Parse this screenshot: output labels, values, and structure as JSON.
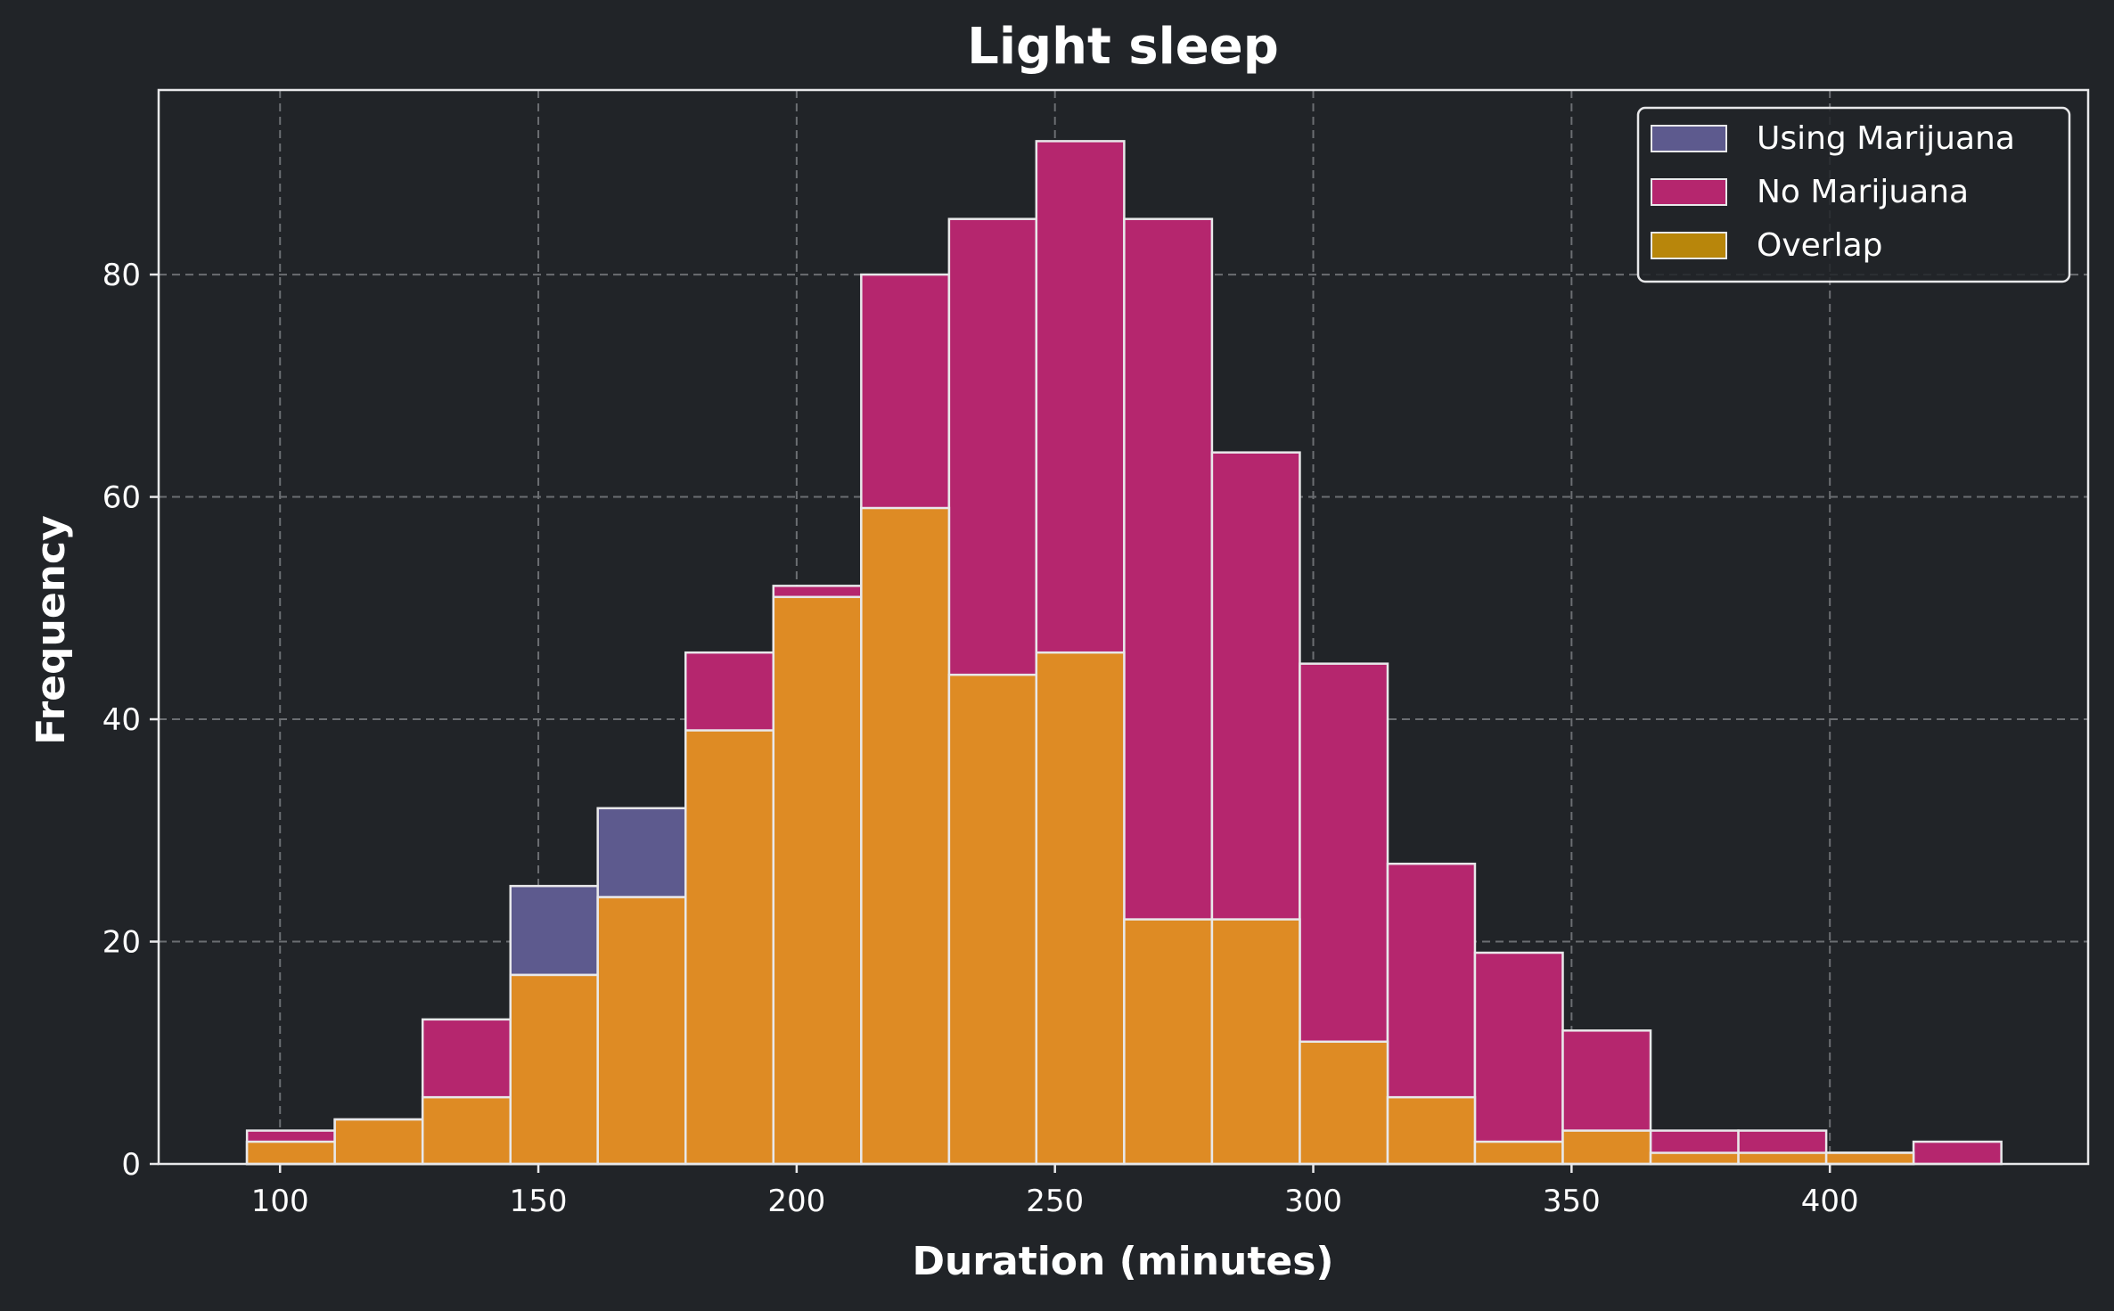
{
  "chart_data": {
    "type": "bar",
    "title": "Light sleep",
    "xlabel": "Duration (minutes)",
    "ylabel": "Frequency",
    "xlim": [
      76.5,
      450
    ],
    "ylim": [
      0,
      96.6
    ],
    "grid": true,
    "legend_position": "top-right",
    "x_ticks": [
      100,
      150,
      200,
      250,
      300,
      350,
      400
    ],
    "y_ticks": [
      0,
      20,
      40,
      60,
      80
    ],
    "bin_edges": [
      93.6,
      110.6,
      127.6,
      144.6,
      161.5,
      178.5,
      195.5,
      212.5,
      229.5,
      246.4,
      263.4,
      280.4,
      297.4,
      314.4,
      331.3,
      348.3,
      365.3,
      382.3,
      399.3,
      416.2,
      433.2
    ],
    "series": [
      {
        "name": "Using Marijuana",
        "color": "#5d5a8e",
        "values": [
          2,
          4,
          6,
          25,
          32,
          39,
          51,
          59,
          44,
          46,
          22,
          22,
          11,
          6,
          2,
          3,
          1,
          1,
          1,
          0
        ]
      },
      {
        "name": "No Marijuana",
        "color": "#b5266e",
        "values": [
          3,
          4,
          13,
          17,
          24,
          46,
          52,
          80,
          85,
          92,
          85,
          64,
          45,
          27,
          19,
          12,
          3,
          3,
          1,
          2
        ]
      },
      {
        "name": "Overlap",
        "color": "#de8b24",
        "values": [
          2,
          4,
          6,
          17,
          24,
          39,
          51,
          59,
          44,
          46,
          22,
          22,
          11,
          6,
          2,
          3,
          1,
          1,
          1,
          0
        ]
      }
    ],
    "legend_overlap_swatch": "#b8860b"
  }
}
